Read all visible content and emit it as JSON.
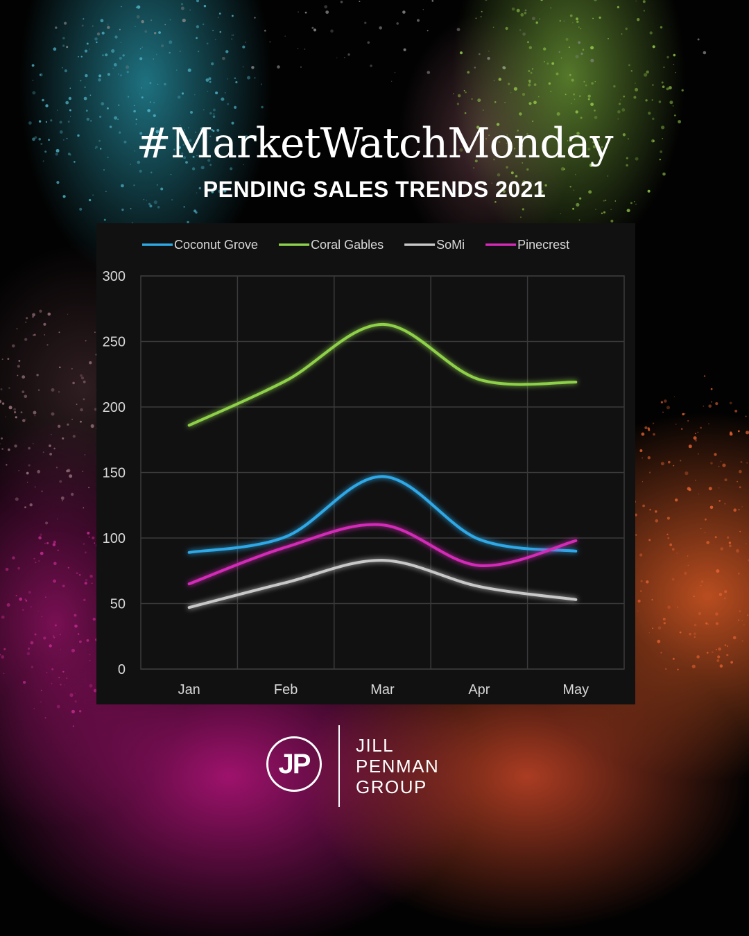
{
  "header": {
    "title": "#MarketWatchMonday",
    "subtitle": "PENDING SALES TRENDS 2021"
  },
  "brand": {
    "monogram": "JP",
    "name_lines": [
      "JILL",
      "PENMAN",
      "GROUP"
    ]
  },
  "chart_data": {
    "type": "line",
    "title": "",
    "xlabel": "",
    "ylabel": "",
    "categories": [
      "Jan",
      "Feb",
      "Mar",
      "Apr",
      "May"
    ],
    "ylim": [
      0,
      300
    ],
    "yticks": [
      0,
      50,
      100,
      150,
      200,
      250,
      300
    ],
    "grid": true,
    "smooth": true,
    "legend_position": "top",
    "series": [
      {
        "name": "Coconut Grove",
        "color": "#2ea8e6",
        "values": [
          89,
          101,
          147,
          99,
          90
        ]
      },
      {
        "name": "Coral Gables",
        "color": "#8ed14a",
        "values": [
          186,
          220,
          263,
          221,
          219
        ]
      },
      {
        "name": "SoMi",
        "color": "#c8c8c8",
        "values": [
          47,
          66,
          83,
          63,
          53
        ]
      },
      {
        "name": "Pinecrest",
        "color": "#d42ab8",
        "values": [
          65,
          93,
          110,
          79,
          98
        ]
      }
    ]
  }
}
